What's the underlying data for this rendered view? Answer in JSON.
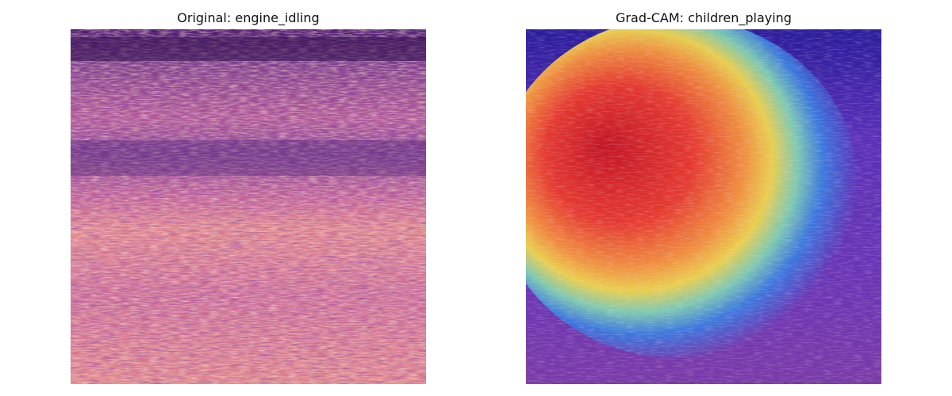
{
  "panels": {
    "original": {
      "title": "Original: engine_idling"
    },
    "gradcam": {
      "title": "Grad-CAM: children_playing"
    }
  }
}
